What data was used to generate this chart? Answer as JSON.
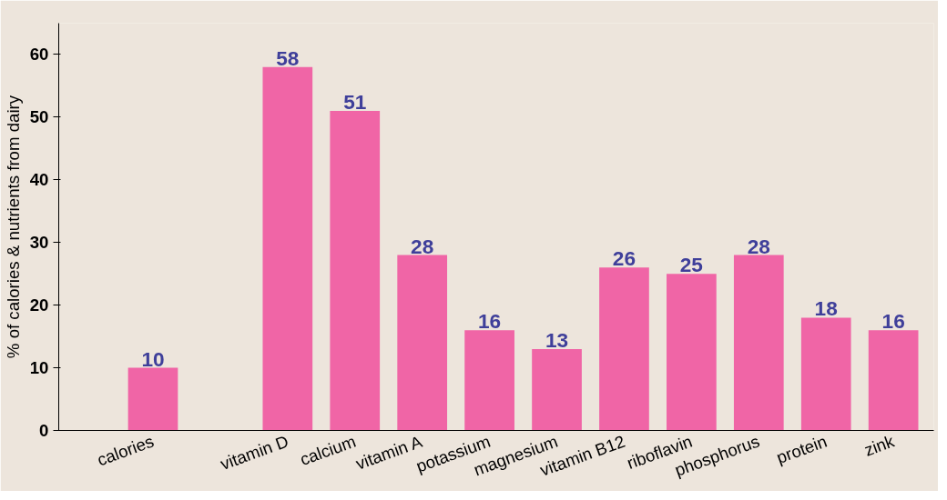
{
  "chart_data": {
    "type": "bar",
    "ylabel": "% of calories & nutrients from dairy",
    "categories": [
      "calories",
      null,
      "vitamin D",
      "calcium",
      "vitamin A",
      "potassium",
      "magnesium",
      "vitamin B12",
      "riboflavin",
      "phosphorus",
      "protein",
      "zink"
    ],
    "values": [
      10,
      null,
      58,
      51,
      28,
      16,
      13,
      26,
      25,
      28,
      18,
      16
    ],
    "color": "#f065a6",
    "ylim": [
      0,
      65
    ],
    "yticks": [
      0,
      10,
      20,
      30,
      40,
      50,
      60
    ],
    "grid": false,
    "data_labels": true
  }
}
